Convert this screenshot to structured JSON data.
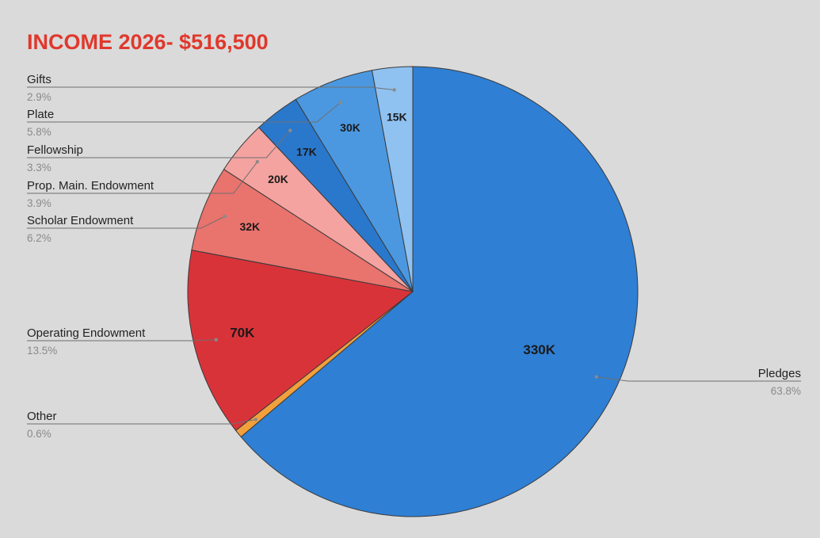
{
  "chart_data": {
    "type": "pie",
    "title": "INCOME 2026- $516,500",
    "total": 516500,
    "start_angle_deg": 0,
    "direction": "clockwise",
    "slices": [
      {
        "name": "Pledges",
        "label": "330K",
        "value": 330000,
        "percent": "63.8%",
        "color": "#2f7fd4"
      },
      {
        "name": "Other",
        "label": "",
        "value": 3000,
        "percent": "0.6%",
        "color": "#f2a03c"
      },
      {
        "name": "Operating Endowment",
        "label": "70K",
        "value": 70000,
        "percent": "13.5%",
        "color": "#d9333a"
      },
      {
        "name": "Scholar Endowment",
        "label": "32K",
        "value": 32000,
        "percent": "6.2%",
        "color": "#e9736d"
      },
      {
        "name": "Prop. Main. Endowment",
        "label": "20K",
        "value": 20000,
        "percent": "3.9%",
        "color": "#f4a3a0"
      },
      {
        "name": "Fellowship",
        "label": "17K",
        "value": 17000,
        "percent": "3.3%",
        "color": "#2a78cc"
      },
      {
        "name": "Plate",
        "label": "30K",
        "value": 30000,
        "percent": "5.8%",
        "color": "#4b98e0"
      },
      {
        "name": "Gifts",
        "label": "15K",
        "value": 15000,
        "percent": "2.9%",
        "color": "#8fc2f1"
      }
    ],
    "legend": "leader-line labels"
  }
}
